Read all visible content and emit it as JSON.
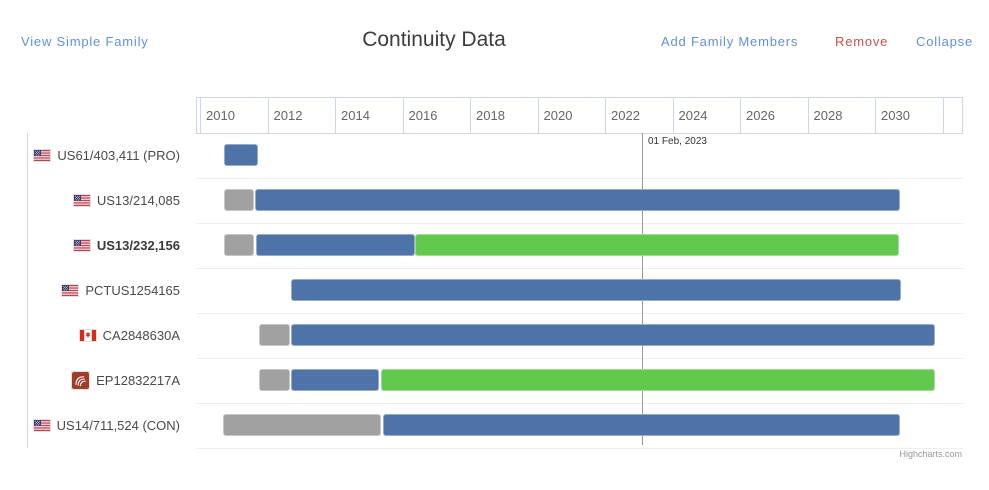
{
  "header": {
    "view_simple_family": "View Simple Family",
    "title": "Continuity Data",
    "add_family_members": "Add Family Members",
    "remove": "Remove",
    "collapse": "Collapse",
    "link_color": "#628fdb",
    "remove_color": "#c5524c"
  },
  "chart_data": {
    "type": "bar",
    "subtype": "gantt-timeline",
    "title": "Continuity Data",
    "x_axis": {
      "min": 2009.88,
      "max": 2032.56,
      "tick_interval": 2,
      "tick_labels": [
        "2010",
        "2012",
        "2014",
        "2016",
        "2018",
        "2020",
        "2022",
        "2024",
        "2026",
        "2028",
        "2030"
      ]
    },
    "grid": true,
    "legend": false,
    "today_line": {
      "label": "01 Feb, 2023",
      "year": 2023.09
    },
    "colors": {
      "blue": "#4e73a8",
      "green": "#62c94c",
      "gray": "#a1a1a1"
    },
    "rows": [
      {
        "label": "US61/403,411 (PRO)",
        "flag": "us-flag",
        "bold": false,
        "segments": [
          {
            "color": "blue",
            "start": 2010.71,
            "end": 2011.72
          }
        ]
      },
      {
        "label": "US13/214,085",
        "flag": "us-flag",
        "bold": false,
        "segments": [
          {
            "color": "gray",
            "start": 2010.71,
            "end": 2011.61
          },
          {
            "color": "blue",
            "start": 2011.64,
            "end": 2030.74
          }
        ]
      },
      {
        "label": "US13/232,156",
        "flag": "us-flag",
        "bold": true,
        "segments": [
          {
            "color": "gray",
            "start": 2010.71,
            "end": 2011.61
          },
          {
            "color": "blue",
            "start": 2011.66,
            "end": 2016.37
          },
          {
            "color": "green",
            "start": 2016.37,
            "end": 2030.71
          }
        ]
      },
      {
        "label": "PCTUS1254165",
        "flag": "us-flag",
        "bold": false,
        "segments": [
          {
            "color": "blue",
            "start": 2012.7,
            "end": 2030.77
          }
        ]
      },
      {
        "label": "CA2848630A",
        "flag": "canada-flag",
        "bold": false,
        "segments": [
          {
            "color": "gray",
            "start": 2011.75,
            "end": 2012.67
          },
          {
            "color": "blue",
            "start": 2012.7,
            "end": 2031.78
          }
        ]
      },
      {
        "label": "EP12832217A",
        "flag": "epo",
        "bold": false,
        "segments": [
          {
            "color": "gray",
            "start": 2011.75,
            "end": 2012.67
          },
          {
            "color": "blue",
            "start": 2012.7,
            "end": 2015.3
          },
          {
            "color": "green",
            "start": 2015.36,
            "end": 2031.78
          }
        ]
      },
      {
        "label": "US14/711,524 (CON)",
        "flag": "us-flag",
        "bold": false,
        "segments": [
          {
            "color": "gray",
            "start": 2010.69,
            "end": 2015.36
          },
          {
            "color": "blue",
            "start": 2015.42,
            "end": 2030.74
          }
        ]
      }
    ],
    "credit": "Highcharts.com"
  }
}
